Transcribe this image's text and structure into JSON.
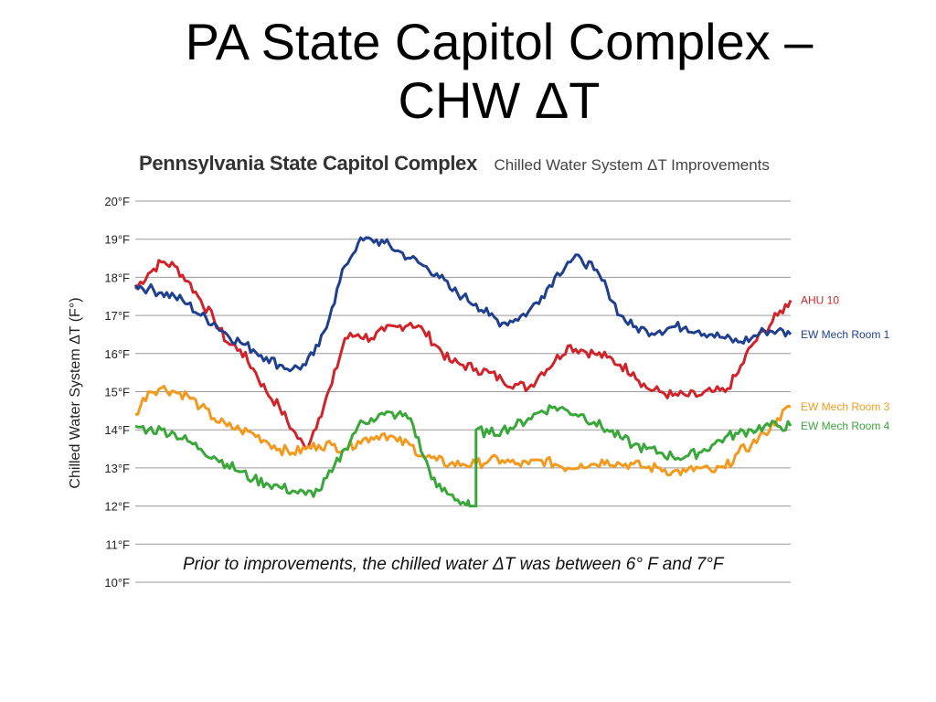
{
  "slide": {
    "title_line1": "PA State Capitol Complex –",
    "title_line2": "CHW ΔT"
  },
  "chart_data": {
    "type": "line",
    "title": "Pennsylvania State Capitol Complex",
    "subtitle": "Chilled Water System ΔT Improvements",
    "ylabel": "Chilled Water System ΔT (F°)",
    "xlabel": "",
    "ylim": [
      10,
      20
    ],
    "yticks": [
      10,
      11,
      12,
      13,
      14,
      15,
      16,
      17,
      18,
      19,
      20
    ],
    "ytick_labels": [
      "10°F",
      "11°F",
      "12°F",
      "13°F",
      "14°F",
      "15°F",
      "16°F",
      "17°F",
      "18°F",
      "19°F",
      "20°F"
    ],
    "grid": true,
    "legend": "right",
    "annotation": "Prior to improvements, the chilled water ΔT was between 6° F and 7°F",
    "x_range": [
      0,
      100
    ],
    "series": [
      {
        "name": "AHU 10",
        "color": "#d1232a",
        "x": [
          0,
          2,
          4,
          6,
          8,
          10,
          12,
          14,
          16,
          18,
          20,
          22,
          24,
          26,
          28,
          30,
          32,
          34,
          36,
          38,
          40,
          42,
          44,
          46,
          48,
          50,
          52,
          54,
          56,
          58,
          60,
          62,
          64,
          66,
          68,
          70,
          72,
          74,
          76,
          78,
          80,
          82,
          84,
          86,
          88,
          90,
          92,
          94,
          96,
          98,
          100
        ],
        "y": [
          17.7,
          18.1,
          18.4,
          18.3,
          17.9,
          17.4,
          16.9,
          16.3,
          16.1,
          15.6,
          15.0,
          14.6,
          14.0,
          13.5,
          14.3,
          15.2,
          16.4,
          16.5,
          16.4,
          16.6,
          16.7,
          16.8,
          16.6,
          16.2,
          15.8,
          15.7,
          15.6,
          15.5,
          15.3,
          15.2,
          15.1,
          15.5,
          15.8,
          16.2,
          16.1,
          16.0,
          15.9,
          15.7,
          15.5,
          15.1,
          15.0,
          14.9,
          14.9,
          14.9,
          15.0,
          15.0,
          15.5,
          16.2,
          16.6,
          17.0,
          17.4
        ]
      },
      {
        "name": "EW Mech Room 1",
        "color": "#1f3f8f",
        "x": [
          0,
          2,
          4,
          6,
          8,
          10,
          12,
          14,
          16,
          18,
          20,
          22,
          24,
          26,
          28,
          30,
          32,
          34,
          36,
          38,
          40,
          42,
          44,
          46,
          48,
          50,
          52,
          54,
          56,
          58,
          60,
          62,
          64,
          66,
          68,
          70,
          72,
          74,
          76,
          78,
          80,
          82,
          84,
          86,
          88,
          90,
          92,
          94,
          96,
          98,
          100
        ],
        "y": [
          17.8,
          17.7,
          17.6,
          17.5,
          17.3,
          17.0,
          16.8,
          16.5,
          16.3,
          16.1,
          15.9,
          15.7,
          15.6,
          15.7,
          16.2,
          17.2,
          18.3,
          18.9,
          19.0,
          18.9,
          18.7,
          18.5,
          18.3,
          18.1,
          17.7,
          17.5,
          17.3,
          17.0,
          16.8,
          16.9,
          17.1,
          17.5,
          18.0,
          18.4,
          18.5,
          18.2,
          17.7,
          17.0,
          16.7,
          16.6,
          16.6,
          16.7,
          16.7,
          16.6,
          16.5,
          16.4,
          16.3,
          16.4,
          16.6,
          16.6,
          16.5
        ]
      },
      {
        "name": "EW Mech Room 3",
        "color": "#f39a1e",
        "x": [
          0,
          2,
          4,
          6,
          8,
          10,
          12,
          14,
          16,
          18,
          20,
          22,
          24,
          26,
          28,
          30,
          32,
          34,
          36,
          38,
          40,
          42,
          44,
          46,
          48,
          50,
          52,
          54,
          56,
          58,
          60,
          62,
          64,
          66,
          68,
          70,
          72,
          74,
          76,
          78,
          80,
          82,
          84,
          86,
          88,
          90,
          92,
          94,
          96,
          98,
          100
        ],
        "y": [
          14.4,
          15.0,
          15.1,
          15.0,
          14.9,
          14.6,
          14.3,
          14.1,
          14.0,
          13.9,
          13.7,
          13.5,
          13.4,
          13.5,
          13.6,
          13.6,
          13.5,
          13.7,
          13.8,
          13.9,
          13.7,
          13.6,
          13.3,
          13.2,
          13.1,
          13.1,
          13.1,
          13.2,
          13.2,
          13.1,
          13.1,
          13.2,
          13.1,
          13.0,
          13.1,
          13.1,
          13.2,
          13.1,
          13.1,
          13.0,
          13.0,
          12.9,
          12.9,
          13.0,
          12.9,
          13.0,
          13.4,
          13.6,
          13.9,
          14.3,
          14.6
        ]
      },
      {
        "name": "EW Mech Room 4",
        "color": "#3aa73a",
        "x": [
          0,
          2,
          4,
          6,
          8,
          10,
          12,
          14,
          16,
          18,
          20,
          22,
          24,
          26,
          28,
          30,
          32,
          34,
          36,
          38,
          40,
          42,
          44,
          46,
          48,
          50,
          51,
          52,
          54,
          56,
          58,
          60,
          62,
          64,
          66,
          68,
          70,
          72,
          74,
          76,
          78,
          80,
          82,
          84,
          86,
          88,
          90,
          92,
          94,
          96,
          98,
          100
        ],
        "y": [
          14.1,
          14.0,
          14.0,
          13.9,
          13.7,
          13.5,
          13.3,
          13.1,
          12.9,
          12.7,
          12.6,
          12.5,
          12.4,
          12.3,
          12.4,
          12.9,
          13.5,
          14.1,
          14.3,
          14.4,
          14.4,
          14.3,
          13.3,
          12.5,
          12.3,
          12.1,
          12.0,
          14.0,
          13.9,
          14.0,
          14.1,
          14.3,
          14.5,
          14.6,
          14.5,
          14.4,
          14.2,
          14.0,
          13.8,
          13.6,
          13.5,
          13.4,
          13.3,
          13.3,
          13.4,
          13.6,
          13.8,
          13.9,
          14.0,
          14.1,
          14.1,
          14.1
        ]
      }
    ]
  }
}
